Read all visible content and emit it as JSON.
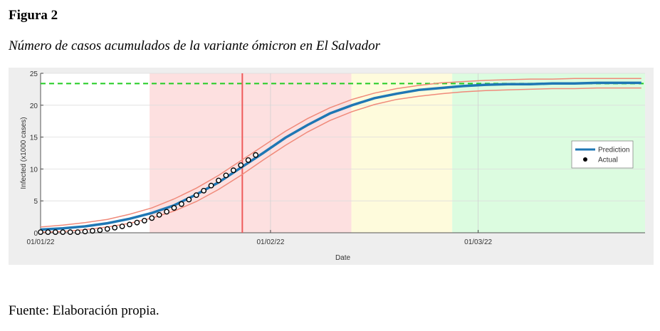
{
  "header": {
    "label": "Figura 2",
    "caption": "Número de casos acumulados de la variante ómicron en El Salvador"
  },
  "chart_data": {
    "type": "line",
    "xlabel": "Date",
    "ylabel": "Infected (x1000 cases)",
    "x": [
      0,
      3,
      6,
      9,
      12,
      15,
      18,
      21,
      24,
      27,
      30,
      33,
      36,
      39,
      42,
      45,
      48,
      51,
      54,
      57,
      60,
      63,
      66,
      69,
      72,
      75,
      78,
      81
    ],
    "xlim": [
      0,
      81.5
    ],
    "ylim": [
      0,
      25
    ],
    "xticks": [
      {
        "value": 0,
        "label": "01/01/22"
      },
      {
        "value": 31,
        "label": "01/02/22"
      },
      {
        "value": 59,
        "label": "01/03/22"
      }
    ],
    "yticks": [
      0,
      5,
      10,
      15,
      20,
      25
    ],
    "grid": true,
    "legend": "east",
    "regions": [
      {
        "from": 14.7,
        "to": 41.9,
        "color": "#fde0e0"
      },
      {
        "from": 41.9,
        "to": 55.5,
        "color": "#fefbdc"
      },
      {
        "from": 55.5,
        "to": 81.5,
        "color": "#dcfce0"
      }
    ],
    "reference_lines": [
      {
        "axis": "y",
        "value": 23.4,
        "color": "#22cc22",
        "dashed": true
      },
      {
        "axis": "x",
        "value": 27.2,
        "color": "#ee5a5a",
        "dashed": false
      }
    ],
    "series": [
      {
        "values": [
          0.9,
          1.2,
          1.6,
          2.1,
          2.9,
          3.9,
          5.3,
          7.0,
          9.0,
          11.3,
          13.6,
          15.9,
          17.9,
          19.6,
          20.9,
          21.9,
          22.6,
          23.1,
          23.5,
          23.7,
          23.9,
          24.0,
          24.1,
          24.1,
          24.2,
          24.2,
          24.2,
          24.2
        ],
        "color": "#f08a7a",
        "style": "line",
        "width": 1.5
      },
      {
        "values": [
          0.1,
          0.2,
          0.5,
          0.9,
          1.5,
          2.3,
          3.4,
          4.9,
          6.8,
          9.0,
          11.4,
          13.7,
          15.8,
          17.6,
          19.0,
          20.1,
          20.9,
          21.4,
          21.8,
          22.1,
          22.3,
          22.4,
          22.5,
          22.6,
          22.6,
          22.7,
          22.7,
          22.7
        ],
        "color": "#f08a7a",
        "style": "line",
        "width": 1.5
      },
      {
        "name": "Prediction",
        "values": [
          0.5,
          0.7,
          1.0,
          1.5,
          2.2,
          3.1,
          4.3,
          6.0,
          7.9,
          10.2,
          12.5,
          14.9,
          16.9,
          18.7,
          20.0,
          21.1,
          21.8,
          22.4,
          22.7,
          23.0,
          23.2,
          23.3,
          23.3,
          23.4,
          23.4,
          23.5,
          23.5,
          23.5
        ],
        "color": "#1f77b4",
        "style": "line",
        "width": 3.5
      },
      {
        "name": "Actual",
        "x": [
          0,
          1,
          2,
          3,
          4,
          5,
          6,
          7,
          8,
          9,
          10,
          11,
          12,
          13,
          14,
          15,
          16,
          17,
          18,
          19,
          20,
          21,
          22,
          23,
          24,
          25,
          26,
          27,
          28,
          29
        ],
        "values": [
          0.1,
          0.1,
          0.1,
          0.1,
          0.1,
          0.1,
          0.2,
          0.3,
          0.4,
          0.6,
          0.8,
          1.0,
          1.3,
          1.6,
          1.9,
          2.3,
          2.8,
          3.3,
          3.9,
          4.5,
          5.2,
          5.9,
          6.6,
          7.4,
          8.2,
          9.0,
          9.8,
          10.6,
          11.4,
          12.2
        ],
        "color": "#000000",
        "style": "markers"
      }
    ]
  },
  "footer": "Fuente: Elaboración propia."
}
